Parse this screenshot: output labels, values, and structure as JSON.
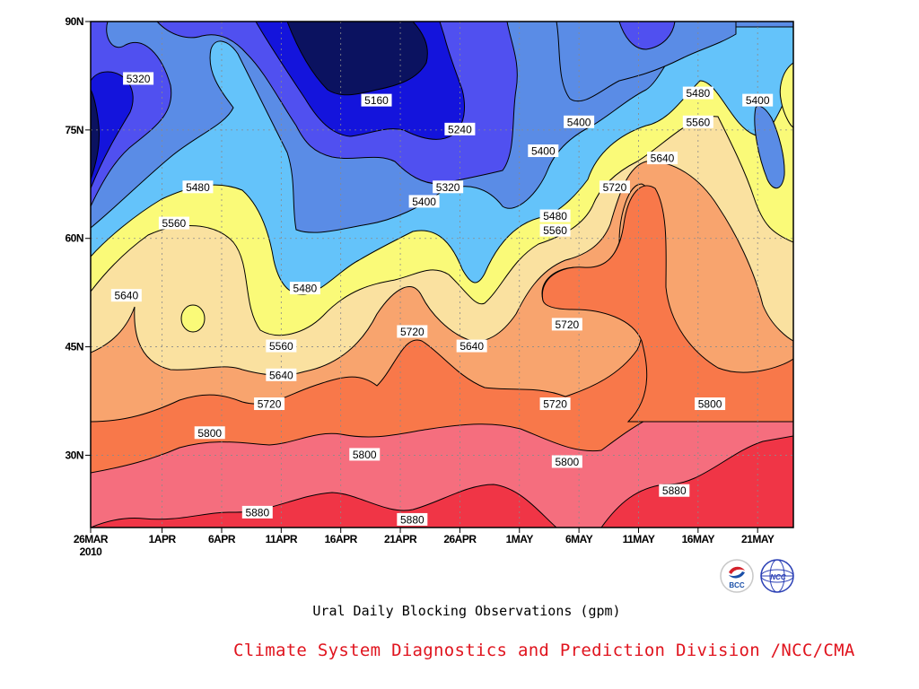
{
  "chart_data": {
    "type": "heatmap",
    "title": "Ural Daily Blocking Observations (gpm)",
    "xlabel": "",
    "ylabel": "",
    "x_ticks": [
      "26MAR",
      "1APR",
      "6APR",
      "11APR",
      "16APR",
      "21APR",
      "26APR",
      "1MAY",
      "6MAY",
      "11MAY",
      "16MAY",
      "21MAY"
    ],
    "x_tick_sublabel": "2010",
    "x_tick_days": [
      0,
      6,
      11,
      16,
      21,
      26,
      31,
      36,
      41,
      46,
      51,
      56
    ],
    "xlim_days": [
      0,
      59
    ],
    "y_ticks": [
      "30N",
      "45N",
      "60N",
      "75N",
      "90N"
    ],
    "y_tick_values": [
      30,
      45,
      60,
      75,
      90
    ],
    "ylim": [
      20,
      90
    ],
    "contour_levels": [
      5160,
      5240,
      5320,
      5400,
      5480,
      5560,
      5640,
      5720,
      5800,
      5880
    ],
    "fill_colors": [
      "#0b1260",
      "#1414dc",
      "#5050f0",
      "#5a8ce6",
      "#64c3fa",
      "#fafa78",
      "#fae1a0",
      "#f8a46e",
      "#f8784a",
      "#f56e7e",
      "#f03546"
    ],
    "grid": true,
    "contour_labels": [
      {
        "text": "5320",
        "day": 4,
        "lat": 82
      },
      {
        "text": "5160",
        "day": 24,
        "lat": 79
      },
      {
        "text": "5240",
        "day": 31,
        "lat": 75
      },
      {
        "text": "5400",
        "day": 41,
        "lat": 76
      },
      {
        "text": "5480",
        "day": 51,
        "lat": 80
      },
      {
        "text": "5400",
        "day": 56,
        "lat": 79
      },
      {
        "text": "5400",
        "day": 38,
        "lat": 72
      },
      {
        "text": "5560",
        "day": 51,
        "lat": 76
      },
      {
        "text": "5320",
        "day": 30,
        "lat": 67
      },
      {
        "text": "5400",
        "day": 28,
        "lat": 65
      },
      {
        "text": "5640",
        "day": 48,
        "lat": 71
      },
      {
        "text": "5720",
        "day": 44,
        "lat": 67
      },
      {
        "text": "5480",
        "day": 9,
        "lat": 67
      },
      {
        "text": "5560",
        "day": 7,
        "lat": 62
      },
      {
        "text": "5480",
        "day": 39,
        "lat": 63
      },
      {
        "text": "5560",
        "day": 39,
        "lat": 61
      },
      {
        "text": "5640",
        "day": 3,
        "lat": 52
      },
      {
        "text": "5480",
        "day": 18,
        "lat": 53
      },
      {
        "text": "5720",
        "day": 40,
        "lat": 48
      },
      {
        "text": "5720",
        "day": 27,
        "lat": 47
      },
      {
        "text": "5560",
        "day": 16,
        "lat": 45
      },
      {
        "text": "5640",
        "day": 32,
        "lat": 45
      },
      {
        "text": "5640",
        "day": 16,
        "lat": 41
      },
      {
        "text": "5720",
        "day": 15,
        "lat": 37
      },
      {
        "text": "5720",
        "day": 39,
        "lat": 37
      },
      {
        "text": "5800",
        "day": 52,
        "lat": 37
      },
      {
        "text": "5800",
        "day": 10,
        "lat": 33
      },
      {
        "text": "5800",
        "day": 23,
        "lat": 30
      },
      {
        "text": "5800",
        "day": 40,
        "lat": 29
      },
      {
        "text": "5880",
        "day": 14,
        "lat": 22
      },
      {
        "text": "5880",
        "day": 27,
        "lat": 21
      },
      {
        "text": "5880",
        "day": 49,
        "lat": 25
      }
    ]
  },
  "credit": "Climate System Diagnostics and Prediction Division /NCC/CMA",
  "logos": {
    "bcc_text": "BCC",
    "ncc_text": "NCC"
  }
}
